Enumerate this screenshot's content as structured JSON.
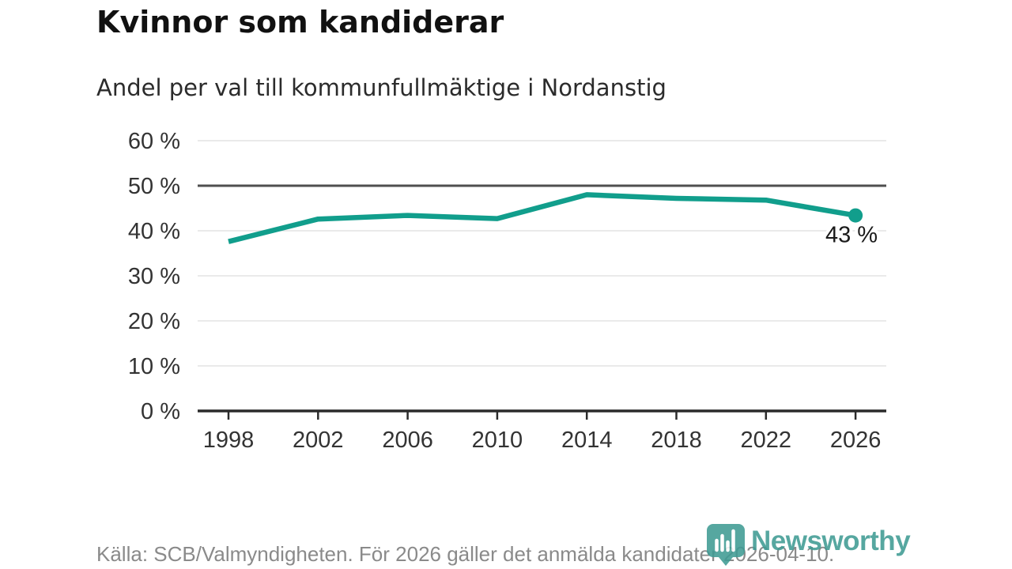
{
  "header": {
    "title": "Kvinnor som kandiderar",
    "subtitle": "Andel per val till kommunfullmäktige i Nordanstig"
  },
  "chart_data": {
    "type": "line",
    "title": "Kvinnor som kandiderar",
    "subtitle": "Andel per val till kommunfullmäktige i Nordanstig",
    "x": [
      1998,
      2002,
      2006,
      2010,
      2014,
      2018,
      2022,
      2026
    ],
    "xtick_labels": [
      "1998",
      "2002",
      "2006",
      "2010",
      "2014",
      "2018",
      "2022",
      "2026"
    ],
    "values": [
      37.6,
      42.6,
      43.4,
      42.7,
      48.0,
      47.2,
      46.8,
      43.4
    ],
    "end_point_label": "43 %",
    "ylim": [
      0,
      60
    ],
    "ytick_values": [
      0,
      10,
      20,
      30,
      40,
      50,
      60
    ],
    "ytick_labels": [
      "0 %",
      "10 %",
      "20 %",
      "30 %",
      "40 %",
      "50 %",
      "60 %"
    ],
    "highlight_gridline_value": 50,
    "grid": "horizontal",
    "legend": "none",
    "colors": {
      "line": "#119e8c",
      "grid": "#e3e3e3",
      "highlight_grid": "#4f4f4f",
      "axis": "#2b2b2b",
      "tick_text": "#333333",
      "end_label_text": "#1a1a1a"
    }
  },
  "footer": {
    "source": "Källa: SCB/Valmyndigheten. För 2026 gäller det anmälda kandidater 2026-04-10.",
    "brand": {
      "name": "Newsworthy",
      "color": "#3f9b94",
      "icon": "newsworthy-pin-barchart-icon"
    }
  }
}
